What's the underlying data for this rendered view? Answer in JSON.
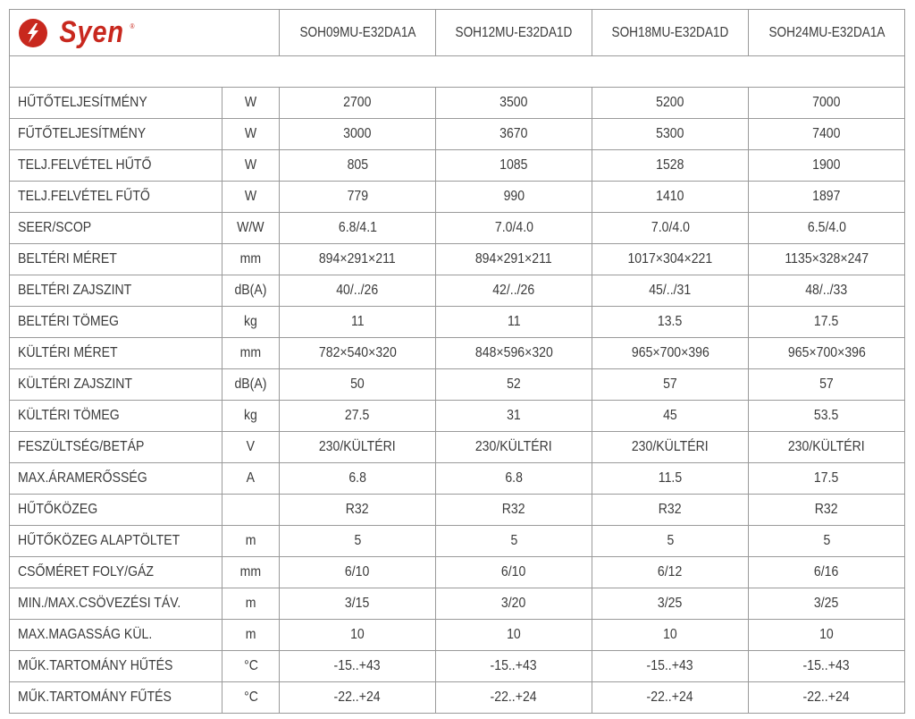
{
  "brand": {
    "name": "Syen",
    "color": "#c8281e",
    "icon": "lightning-bolt-circle-icon"
  },
  "models": [
    "SOH09MU-E32DA1A",
    "SOH12MU-E32DA1D",
    "SOH18MU-E32DA1D",
    "SOH24MU-E32DA1A"
  ],
  "rows": [
    {
      "label": "HŰTŐTELJESÍTMÉNY",
      "unit": "W",
      "values": [
        "2700",
        "3500",
        "5200",
        "7000"
      ]
    },
    {
      "label": "FŰTŐTELJESÍTMÉNY",
      "unit": "W",
      "values": [
        "3000",
        "3670",
        "5300",
        "7400"
      ]
    },
    {
      "label": "TELJ.FELVÉTEL HŰTŐ",
      "unit": "W",
      "values": [
        "805",
        "1085",
        "1528",
        "1900"
      ]
    },
    {
      "label": "TELJ.FELVÉTEL FŰTŐ",
      "unit": "W",
      "values": [
        "779",
        "990",
        "1410",
        "1897"
      ]
    },
    {
      "label": "SEER/SCOP",
      "unit": "W/W",
      "values": [
        "6.8/4.1",
        "7.0/4.0",
        "7.0/4.0",
        "6.5/4.0"
      ]
    },
    {
      "label": "BELTÉRI MÉRET",
      "unit": "mm",
      "values": [
        "894×291×211",
        "894×291×211",
        "1017×304×221",
        "1135×328×247"
      ]
    },
    {
      "label": "BELTÉRI ZAJSZINT",
      "unit": "dB(A)",
      "values": [
        "40/../26",
        "42/../26",
        "45/../31",
        "48/../33"
      ]
    },
    {
      "label": "BELTÉRI TÖMEG",
      "unit": "kg",
      "values": [
        "11",
        "11",
        "13.5",
        "17.5"
      ]
    },
    {
      "label": "KÜLTÉRI MÉRET",
      "unit": "mm",
      "values": [
        "782×540×320",
        "848×596×320",
        "965×700×396",
        "965×700×396"
      ]
    },
    {
      "label": "KÜLTÉRI ZAJSZINT",
      "unit": "dB(A)",
      "values": [
        "50",
        "52",
        "57",
        "57"
      ]
    },
    {
      "label": "KÜLTÉRI TÖMEG",
      "unit": "kg",
      "values": [
        "27.5",
        "31",
        "45",
        "53.5"
      ]
    },
    {
      "label": "FESZÜLTSÉG/BETÁP",
      "unit": "V",
      "values": [
        "230/KÜLTÉRI",
        "230/KÜLTÉRI",
        "230/KÜLTÉRI",
        "230/KÜLTÉRI"
      ]
    },
    {
      "label": "MAX.ÁRAMERŐSSÉG",
      "unit": "A",
      "values": [
        "6.8",
        "6.8",
        "11.5",
        "17.5"
      ]
    },
    {
      "label": "HŰTŐKÖZEG",
      "unit": "",
      "values": [
        "R32",
        "R32",
        "R32",
        "R32"
      ]
    },
    {
      "label": "HŰTŐKÖZEG ALAPTÖLTET",
      "unit": "m",
      "values": [
        "5",
        "5",
        "5",
        "5"
      ]
    },
    {
      "label": "CSŐMÉRET FOLY/GÁZ",
      "unit": "mm",
      "values": [
        "6/10",
        "6/10",
        "6/12",
        "6/16"
      ]
    },
    {
      "label": "MIN./MAX.CSÖVEZÉSI TÁV.",
      "unit": "m",
      "values": [
        "3/15",
        "3/20",
        "3/25",
        "3/25"
      ]
    },
    {
      "label": "MAX.MAGASSÁG KÜL.",
      "unit": "m",
      "values": [
        "10",
        "10",
        "10",
        "10"
      ]
    },
    {
      "label": "MŰK.TARTOMÁNY HŰTÉS",
      "unit": "°C",
      "values": [
        "-15..+43",
        "-15..+43",
        "-15..+43",
        "-15..+43"
      ]
    },
    {
      "label": "MŰK.TARTOMÁNY FŰTÉS",
      "unit": "°C",
      "values": [
        "-22..+24",
        "-22..+24",
        "-22..+24",
        "-22..+24"
      ]
    }
  ]
}
